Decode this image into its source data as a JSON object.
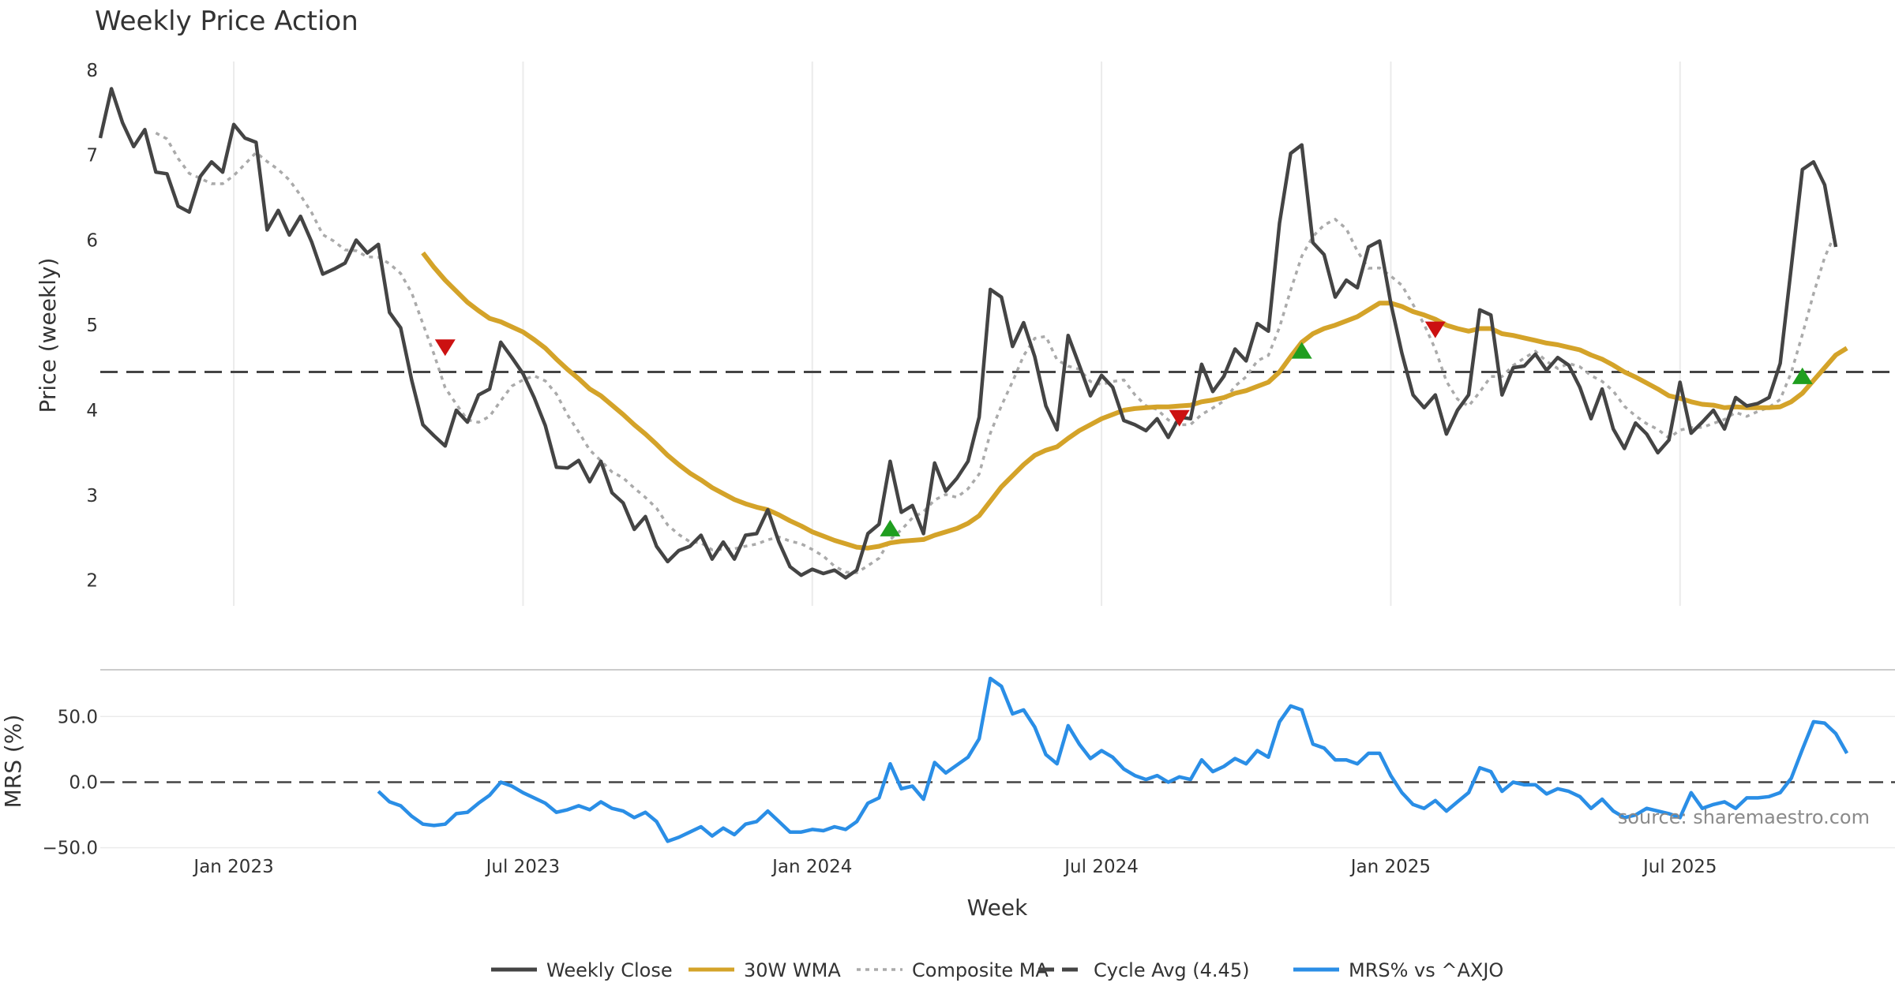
{
  "chart_data": {
    "type": "line",
    "title": "Weekly Price Action",
    "xlabel": "Week",
    "x_ticks": [
      "Jan 2023",
      "Jul 2023",
      "Jan 2024",
      "Jul 2024",
      "Jan 2025",
      "Jul 2025"
    ],
    "source": "source: sharemaestro.com",
    "price_panel": {
      "ylabel": "Price (weekly)",
      "ylim": [
        1.7,
        8.1
      ],
      "yticks": [
        "2",
        "3",
        "4",
        "5",
        "6",
        "7",
        "8"
      ],
      "cycle_avg": 4.45,
      "weekly_close": [
        7.2,
        7.78,
        7.38,
        7.1,
        7.3,
        6.8,
        6.78,
        6.4,
        6.33,
        6.75,
        6.92,
        6.8,
        7.36,
        7.2,
        7.15,
        6.12,
        6.35,
        6.06,
        6.28,
        5.98,
        5.6,
        5.66,
        5.73,
        6.0,
        5.85,
        5.95,
        5.15,
        4.97,
        4.35,
        3.83,
        3.7,
        3.58,
        4.0,
        3.86,
        4.18,
        4.25,
        4.8,
        4.62,
        4.43,
        4.15,
        3.82,
        3.33,
        3.32,
        3.41,
        3.16,
        3.4,
        3.03,
        2.91,
        2.6,
        2.75,
        2.4,
        2.22,
        2.35,
        2.4,
        2.53,
        2.25,
        2.45,
        2.25,
        2.53,
        2.55,
        2.83,
        2.45,
        2.16,
        2.06,
        2.13,
        2.08,
        2.12,
        2.03,
        2.12,
        2.55,
        2.66,
        3.4,
        2.8,
        2.88,
        2.55,
        3.38,
        3.05,
        3.2,
        3.4,
        3.92,
        5.42,
        5.33,
        4.75,
        5.03,
        4.63,
        4.05,
        3.77,
        4.88,
        4.53,
        4.17,
        4.41,
        4.27,
        3.88,
        3.83,
        3.76,
        3.9,
        3.68,
        3.92,
        3.9,
        4.54,
        4.22,
        4.4,
        4.72,
        4.58,
        5.02,
        4.93,
        6.2,
        7.02,
        7.12,
        5.97,
        5.83,
        5.33,
        5.53,
        5.44,
        5.92,
        5.99,
        5.26,
        4.67,
        4.18,
        4.03,
        4.18,
        3.72,
        4.0,
        4.18,
        5.18,
        5.12,
        4.18,
        4.5,
        4.52,
        4.66,
        4.47,
        4.62,
        4.53,
        4.27,
        3.9,
        4.25,
        3.78,
        3.55,
        3.85,
        3.72,
        3.5,
        3.65,
        4.33,
        3.73,
        3.86,
        4.0,
        3.78,
        4.15,
        4.05,
        4.08,
        4.15,
        4.55,
        5.68,
        6.83,
        6.92,
        6.65,
        5.92
      ],
      "wma_30w": [
        null,
        null,
        null,
        null,
        null,
        null,
        null,
        null,
        null,
        null,
        null,
        null,
        null,
        null,
        null,
        null,
        null,
        null,
        null,
        null,
        null,
        null,
        null,
        null,
        null,
        null,
        null,
        null,
        null,
        5.85,
        5.68,
        5.53,
        5.4,
        5.27,
        5.17,
        5.08,
        5.04,
        4.98,
        4.92,
        4.83,
        4.73,
        4.6,
        4.48,
        4.37,
        4.25,
        4.17,
        4.06,
        3.95,
        3.83,
        3.72,
        3.6,
        3.47,
        3.36,
        3.26,
        3.18,
        3.09,
        3.02,
        2.95,
        2.9,
        2.86,
        2.83,
        2.77,
        2.7,
        2.64,
        2.57,
        2.52,
        2.47,
        2.43,
        2.39,
        2.38,
        2.4,
        2.44,
        2.46,
        2.47,
        2.48,
        2.53,
        2.57,
        2.61,
        2.67,
        2.76,
        2.93,
        3.1,
        3.23,
        3.36,
        3.47,
        3.53,
        3.57,
        3.67,
        3.76,
        3.83,
        3.9,
        3.95,
        4.0,
        4.02,
        4.03,
        4.04,
        4.04,
        4.05,
        4.06,
        4.1,
        4.12,
        4.15,
        4.2,
        4.23,
        4.28,
        4.33,
        4.45,
        4.63,
        4.8,
        4.9,
        4.96,
        5.0,
        5.05,
        5.1,
        5.18,
        5.26,
        5.26,
        5.22,
        5.16,
        5.12,
        5.07,
        5.0,
        4.96,
        4.93,
        4.96,
        4.96,
        4.9,
        4.88,
        4.85,
        4.82,
        4.79,
        4.77,
        4.74,
        4.71,
        4.65,
        4.6,
        4.53,
        4.45,
        4.39,
        4.32,
        4.25,
        4.17,
        4.14,
        4.1,
        4.07,
        4.06,
        4.03,
        4.04,
        4.03,
        4.03,
        4.03,
        4.04,
        4.1,
        4.2,
        4.35,
        4.5,
        4.65,
        4.73
      ]
    },
    "mrs_panel": {
      "ylabel": "MRS (%)",
      "ylim": [
        -52,
        82
      ],
      "yticks": [
        "50.0",
        "0.0",
        "−50.0"
      ],
      "mrs": [
        null,
        null,
        null,
        null,
        null,
        null,
        null,
        null,
        null,
        null,
        null,
        null,
        null,
        null,
        null,
        null,
        null,
        null,
        null,
        null,
        null,
        null,
        null,
        null,
        null,
        -7,
        -15,
        -18,
        -26,
        -32,
        -33,
        -32,
        -24,
        -23,
        -16,
        -10,
        0,
        -3,
        -8,
        -12,
        -16,
        -23,
        -21,
        -18,
        -21,
        -15,
        -20,
        -22,
        -27,
        -23,
        -30,
        -45,
        -42,
        -38,
        -34,
        -41,
        -35,
        -40,
        -32,
        -30,
        -22,
        -30,
        -38,
        -38,
        -36,
        -37,
        -34,
        -36,
        -30,
        -16,
        -12,
        14,
        -5,
        -3,
        -13,
        15,
        7,
        13,
        19,
        33,
        79,
        73,
        52,
        55,
        42,
        21,
        14,
        43,
        29,
        18,
        24,
        19,
        10,
        5,
        2,
        5,
        0,
        4,
        2,
        17,
        8,
        12,
        18,
        14,
        24,
        19,
        46,
        58,
        55,
        29,
        26,
        17,
        17,
        14,
        22,
        22,
        5,
        -8,
        -17,
        -20,
        -14,
        -22,
        -15,
        -8,
        11,
        8,
        -7,
        0,
        -2,
        -2,
        -9,
        -5,
        -7,
        -11,
        -20,
        -13,
        -22,
        -27,
        -25,
        -20,
        -22,
        -24,
        -27,
        -8,
        -20,
        -17,
        -15,
        -20,
        -12,
        -12,
        -11,
        -8,
        3,
        25,
        46,
        45,
        37,
        22
      ],
      "zero_line": 0.0
    },
    "signals": [
      {
        "type": "sell",
        "week": 31,
        "price": 4.74
      },
      {
        "type": "buy",
        "week": 71,
        "price": 2.61
      },
      {
        "type": "sell",
        "week": 97,
        "price": 3.91
      },
      {
        "type": "buy",
        "week": 108,
        "price": 4.7
      },
      {
        "type": "sell",
        "week": 120,
        "price": 4.95
      },
      {
        "type": "buy",
        "week": 153,
        "price": 4.4
      }
    ],
    "legend": [
      {
        "label": "Weekly Close",
        "color": "#444444",
        "style": "solid"
      },
      {
        "label": "30W WMA",
        "color": "#d4a329",
        "style": "solid"
      },
      {
        "label": "Composite MA",
        "color": "#aaaaaa",
        "style": "dotted"
      },
      {
        "label": "Cycle Avg (4.45)",
        "color": "#444444",
        "style": "dashed"
      },
      {
        "label": "MRS% vs ^AXJO",
        "color": "#2a8ee6",
        "style": "solid"
      }
    ],
    "colors": {
      "close": "#444444",
      "wma": "#d4a329",
      "composite": "#aaaaaa",
      "cycle": "#444444",
      "mrs": "#2a8ee6",
      "buy": "#1f9e1f",
      "sell": "#cc1111",
      "grid": "#ebebeb"
    }
  }
}
